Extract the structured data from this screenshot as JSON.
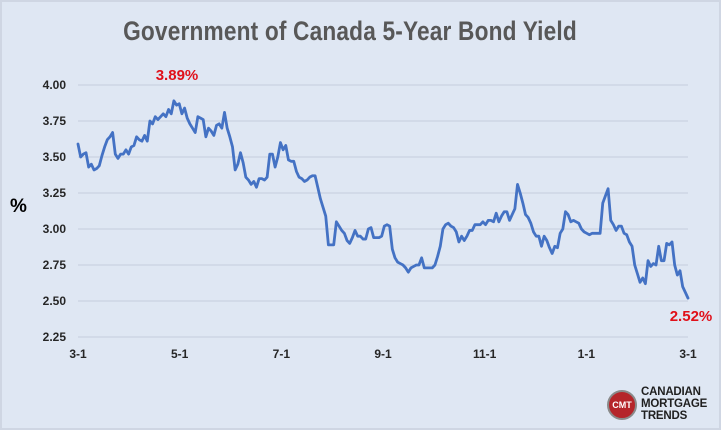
{
  "chart_data": {
    "type": "line",
    "title": "Government of Canada  5-Year Bond Yield",
    "ylabel": "%",
    "xlabel": "",
    "ylim": [
      2.25,
      4.0
    ],
    "yticks": [
      "4.00",
      "3.75",
      "3.50",
      "3.25",
      "3.00",
      "2.75",
      "2.50",
      "2.25"
    ],
    "xticks": [
      "3-1",
      "5-1",
      "7-1",
      "9-1",
      "11-1",
      "1-1",
      "3-1"
    ],
    "grid": true,
    "legend": "none",
    "line_color": "#4472c4",
    "series": [
      {
        "values": [
          3.59,
          3.5,
          3.52,
          3.53,
          3.43,
          3.45,
          3.41,
          3.42,
          3.44,
          3.51,
          3.57,
          3.62,
          3.64,
          3.67,
          3.52,
          3.49,
          3.52,
          3.52,
          3.55,
          3.52,
          3.57,
          3.58,
          3.64,
          3.62,
          3.61,
          3.65,
          3.61,
          3.75,
          3.73,
          3.78,
          3.76,
          3.78,
          3.8,
          3.78,
          3.83,
          3.8,
          3.89,
          3.86,
          3.87,
          3.8,
          3.84,
          3.77,
          3.73,
          3.7,
          3.67,
          3.78,
          3.77,
          3.76,
          3.64,
          3.7,
          3.68,
          3.65,
          3.72,
          3.73,
          3.7,
          3.81,
          3.7,
          3.64,
          3.57,
          3.41,
          3.45,
          3.53,
          3.46,
          3.36,
          3.34,
          3.31,
          3.33,
          3.29,
          3.35,
          3.35,
          3.34,
          3.36,
          3.52,
          3.52,
          3.43,
          3.5,
          3.6,
          3.55,
          3.58,
          3.48,
          3.47,
          3.47,
          3.4,
          3.36,
          3.35,
          3.33,
          3.34,
          3.36,
          3.37,
          3.37,
          3.29,
          3.21,
          3.15,
          3.09,
          2.89,
          2.89,
          2.89,
          3.05,
          3.02,
          2.99,
          2.97,
          2.92,
          2.9,
          2.94,
          2.99,
          2.95,
          2.95,
          2.93,
          2.93,
          3.0,
          3.01,
          2.94,
          2.94,
          2.94,
          2.95,
          3.02,
          3.03,
          3.02,
          2.86,
          2.8,
          2.77,
          2.76,
          2.75,
          2.73,
          2.7,
          2.73,
          2.74,
          2.75,
          2.75,
          2.8,
          2.73,
          2.73,
          2.73,
          2.73,
          2.75,
          2.81,
          2.88,
          3.0,
          3.03,
          3.04,
          3.02,
          3.01,
          2.98,
          2.91,
          2.95,
          2.92,
          2.95,
          2.99,
          2.99,
          3.03,
          3.03,
          3.03,
          3.05,
          3.03,
          3.06,
          3.06,
          3.05,
          3.11,
          3.05,
          3.09,
          3.12,
          3.12,
          3.06,
          3.1,
          3.14,
          3.31,
          3.25,
          3.18,
          3.1,
          3.08,
          3.04,
          2.98,
          2.95,
          2.95,
          2.88,
          2.95,
          2.92,
          2.87,
          2.83,
          2.88,
          2.87,
          2.97,
          3.0,
          3.12,
          3.1,
          3.05,
          3.06,
          3.05,
          3.04,
          3.0,
          2.98,
          2.97,
          2.96,
          2.97,
          2.97,
          2.97,
          2.97,
          3.18,
          3.23,
          3.28,
          3.06,
          3.03,
          2.99,
          3.02,
          3.02,
          2.97,
          2.96,
          2.91,
          2.88,
          2.75,
          2.69,
          2.63,
          2.66,
          2.62,
          2.78,
          2.74,
          2.76,
          2.75,
          2.88,
          2.78,
          2.78,
          2.9,
          2.89,
          2.91,
          2.75,
          2.68,
          2.71,
          2.6,
          2.56,
          2.52
        ]
      }
    ],
    "annotations": {
      "max_label": "3.89%",
      "last_label": "2.52%"
    }
  },
  "logo": {
    "badge": "CMT",
    "line1": "CANADIAN",
    "line2": "MORTGAGE",
    "line3": "TRENDS"
  }
}
